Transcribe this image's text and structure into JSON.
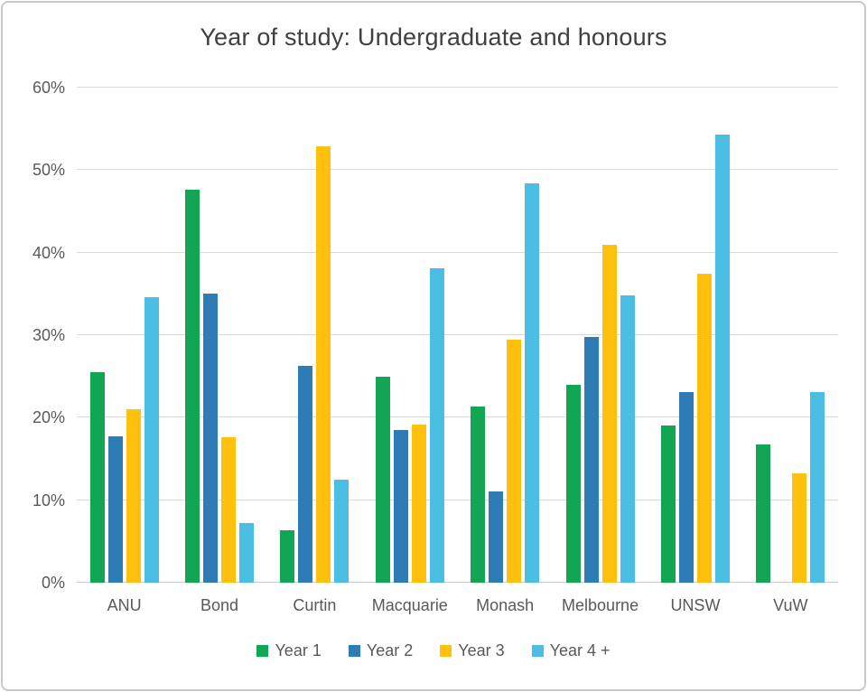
{
  "title": "Year of study: Undergraduate and honours",
  "chart_data": {
    "type": "bar",
    "title": "Year of study: Undergraduate and honours",
    "categories": [
      "ANU",
      "Bond",
      "Curtin",
      "Macquarie",
      "Monash",
      "Melbourne",
      "UNSW",
      "VuW"
    ],
    "series": [
      {
        "name": "Year 1",
        "color": "#12A553",
        "values": [
          25.5,
          47.6,
          6.3,
          25.0,
          21.4,
          24.0,
          19.1,
          16.7
        ]
      },
      {
        "name": "Year 2",
        "color": "#2E7CB5",
        "values": [
          17.7,
          35.0,
          26.3,
          18.5,
          11.1,
          29.8,
          23.1,
          0
        ]
      },
      {
        "name": "Year 3",
        "color": "#FFC10D",
        "values": [
          21.0,
          17.6,
          52.9,
          19.2,
          29.5,
          41.0,
          37.5,
          13.3
        ]
      },
      {
        "name": "Year 4 +",
        "color": "#4BBEE3",
        "values": [
          34.6,
          7.2,
          12.5,
          38.1,
          48.4,
          34.8,
          54.3,
          23.1
        ]
      }
    ],
    "xlabel": "",
    "ylabel": "",
    "ylim": [
      0,
      60
    ],
    "ytick_step": 10,
    "ytick_labels": [
      "0%",
      "10%",
      "20%",
      "30%",
      "40%",
      "50%",
      "60%"
    ],
    "grid": true,
    "legend_position": "bottom",
    "grid_color": "#d9d9d9",
    "text_color": "#595959",
    "title_color": "#404040"
  }
}
